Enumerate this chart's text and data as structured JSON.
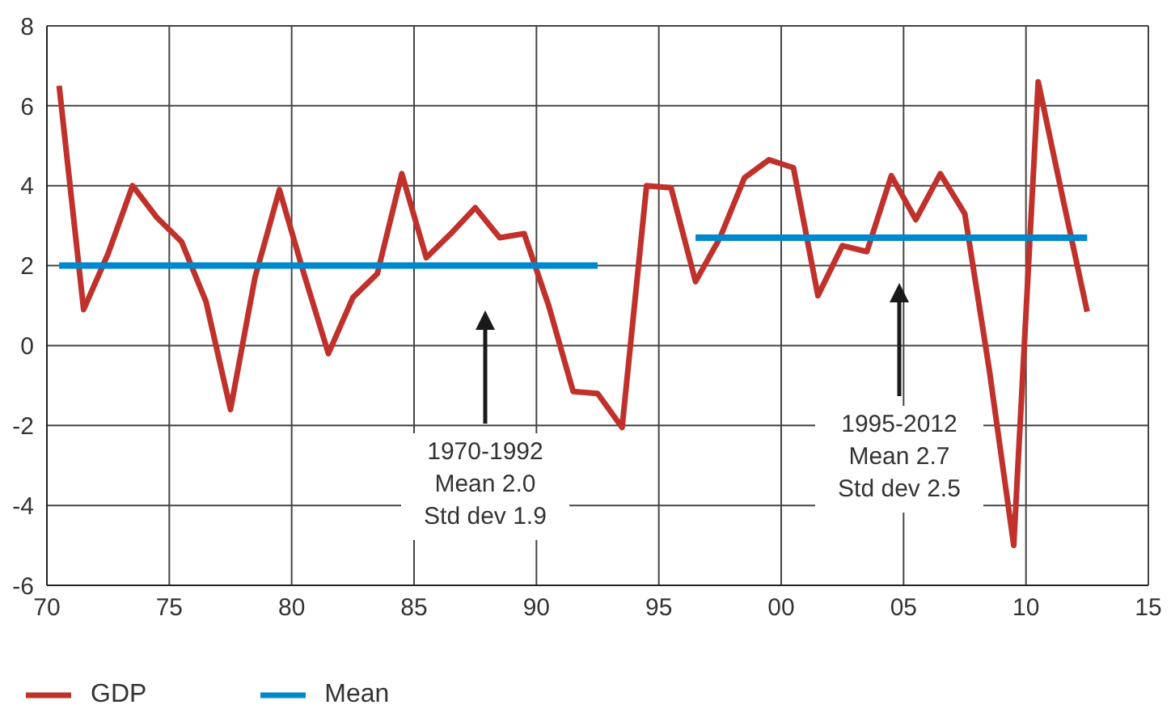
{
  "chart_data": {
    "type": "line",
    "xlim": [
      1970,
      2015
    ],
    "xticks": [
      {
        "value": 1970,
        "label": "70"
      },
      {
        "value": 1975,
        "label": "75"
      },
      {
        "value": 1980,
        "label": "80"
      },
      {
        "value": 1985,
        "label": "85"
      },
      {
        "value": 1990,
        "label": "90"
      },
      {
        "value": 1995,
        "label": "95"
      },
      {
        "value": 2000,
        "label": "00"
      },
      {
        "value": 2005,
        "label": "05"
      },
      {
        "value": 2010,
        "label": "10"
      },
      {
        "value": 2015,
        "label": "15"
      }
    ],
    "ylim": [
      -6,
      8
    ],
    "yticks": [
      -6,
      -4,
      -2,
      0,
      2,
      4,
      6,
      8
    ],
    "grid": true,
    "legend": "bottom",
    "marker": "none",
    "line_style": "solid",
    "series": [
      {
        "name": "GDP",
        "color": "#c0312b",
        "x": [
          1970.5,
          1971.5,
          1972.5,
          1973.5,
          1974.5,
          1975.5,
          1976.5,
          1977.5,
          1978.5,
          1979.5,
          1980.5,
          1981.5,
          1982.5,
          1983.5,
          1984.5,
          1985.5,
          1986.5,
          1987.5,
          1988.5,
          1989.5,
          1990.5,
          1991.5,
          1992.5,
          1993.5,
          1994.5,
          1995.5,
          1996.5,
          1997.5,
          1998.5,
          1999.5,
          2000.5,
          2001.5,
          2002.5,
          2003.5,
          2004.5,
          2005.5,
          2006.5,
          2007.5,
          2008.5,
          2009.5,
          2010.5,
          2011.5,
          2012.5
        ],
        "values": [
          6.5,
          0.9,
          2.3,
          4.0,
          3.2,
          2.6,
          1.1,
          -1.6,
          1.7,
          3.9,
          1.8,
          -0.2,
          1.2,
          1.8,
          4.3,
          2.2,
          2.8,
          3.45,
          2.7,
          2.8,
          1.0,
          -1.15,
          -1.2,
          -2.05,
          4.0,
          3.95,
          1.6,
          2.7,
          4.2,
          4.65,
          4.45,
          1.25,
          2.5,
          2.35,
          4.25,
          3.15,
          4.3,
          3.3,
          -0.6,
          -5.0,
          6.6,
          3.7,
          0.85
        ]
      },
      {
        "name": "Mean",
        "color": "#0088cc",
        "x": [
          1970.5,
          1992.5,
          1994.5,
          1996.5,
          2012.5
        ],
        "values": [
          2.0,
          2.0,
          null,
          2.7,
          2.7
        ]
      }
    ],
    "annotations": [
      "1970-1992\nMean 2.0\nStd dev 1.9",
      "1995-2012\nMean 2.7\nStd dev 2.5"
    ]
  }
}
